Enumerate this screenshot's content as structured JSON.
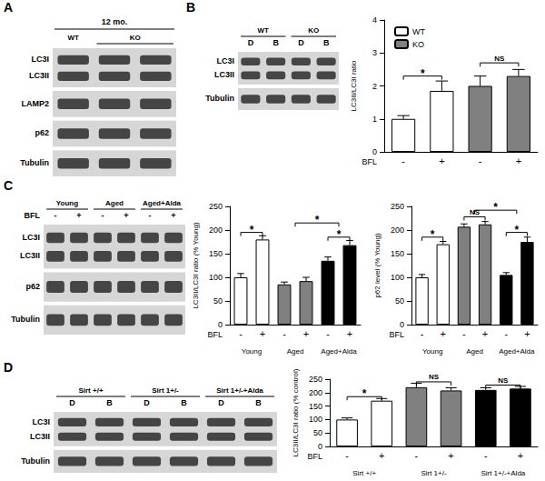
{
  "panel_letters": [
    "A",
    "B",
    "C",
    "D"
  ],
  "blots": [
    {
      "title": "12 mo.",
      "groups": [
        {
          "label": "WT",
          "lanes": 1
        },
        {
          "label": "KO",
          "lanes": 2
        }
      ],
      "rows": [
        [
          "LC3I",
          "LC3II"
        ],
        [
          "LAMP2"
        ],
        [
          "p62"
        ],
        [
          "Tubulin"
        ]
      ]
    },
    {
      "groups": [
        {
          "label": "WT",
          "lanes": 2,
          "lane_labels": [
            "D",
            "B"
          ]
        },
        {
          "label": "KO",
          "lanes": 2,
          "lane_labels": [
            "D",
            "B"
          ]
        }
      ],
      "rows": [
        [
          "LC3I",
          "LC3II"
        ],
        [
          "Tubulin"
        ]
      ]
    },
    {
      "groups": [
        {
          "label": "Young",
          "lanes": 2,
          "lane_labels": [
            "-",
            "+"
          ]
        },
        {
          "label": "Aged",
          "lanes": 2,
          "lane_labels": [
            "-",
            "+"
          ]
        },
        {
          "label": "Aged+Alda",
          "lanes": 2,
          "lane_labels": [
            "-",
            "+"
          ]
        }
      ],
      "lane_row_label": "BFL",
      "rows": [
        [
          "LC3I",
          "LC3II"
        ],
        [
          "p62"
        ],
        [
          "Tubulin"
        ]
      ]
    },
    {
      "groups": [
        {
          "label": "Sirt +/+",
          "lanes": 2,
          "lane_labels": [
            "D",
            "B"
          ]
        },
        {
          "label": "Sirt 1+/-",
          "lanes": 2,
          "lane_labels": [
            "D",
            "B"
          ]
        },
        {
          "label": "Sirt 1+/-+Alda",
          "lanes": 2,
          "lane_labels": [
            "D",
            "B"
          ]
        }
      ],
      "rows": [
        [
          "LC3I",
          "LC3II"
        ],
        [
          "Tubulin"
        ]
      ]
    }
  ],
  "chart_data": [
    {
      "type": "bar",
      "y_label": "LC3II/LC3I ratio",
      "x_label": "BFL",
      "categories": [
        "-",
        "+",
        "-",
        "+"
      ],
      "ylim": [
        0,
        4
      ],
      "yticks": [
        0,
        1,
        2,
        3,
        4
      ],
      "legend": "upper left",
      "series": [
        {
          "name": "WT",
          "color": "#ffffff",
          "values": [
            1.0,
            1.85,
            null,
            null
          ],
          "errors": [
            0.1,
            0.3,
            null,
            null
          ]
        },
        {
          "name": "KO",
          "color": "#808080",
          "values": [
            null,
            null,
            2.0,
            2.3
          ],
          "errors": [
            null,
            null,
            0.3,
            0.2
          ]
        }
      ],
      "annotations": [
        {
          "text": "*",
          "from": 0,
          "to": 1,
          "y": 2.3
        },
        {
          "text": "NS",
          "from": 2,
          "to": 3,
          "y": 2.7
        }
      ]
    },
    {
      "type": "bar",
      "y_label": "LC3II/LC3I ratio (% Young)",
      "x_label": "BFL",
      "categories": [
        "-",
        "+",
        "-",
        "+",
        "-",
        "+"
      ],
      "ylim": [
        0,
        250
      ],
      "yticks": [
        0,
        50,
        100,
        150,
        200,
        250
      ],
      "series": [
        {
          "name": "Young",
          "color": "#ffffff",
          "values": [
            100,
            180,
            null,
            null,
            null,
            null
          ],
          "errors": [
            8,
            8,
            null,
            null,
            null,
            null
          ]
        },
        {
          "name": "Aged",
          "color": "#808080",
          "values": [
            null,
            null,
            85,
            92,
            null,
            null
          ],
          "errors": [
            null,
            null,
            5,
            8,
            null,
            null
          ]
        },
        {
          "name": "Aged+Alda",
          "color": "#000000",
          "values": [
            null,
            null,
            null,
            null,
            135,
            168
          ],
          "errors": [
            null,
            null,
            null,
            null,
            8,
            10
          ]
        }
      ],
      "annotations": [
        {
          "text": "*",
          "from": 0,
          "to": 1,
          "y": 195
        },
        {
          "text": "*",
          "from": 4,
          "to": 5,
          "y": 185
        },
        {
          "text": "*",
          "from": 2.5,
          "to": 4.5,
          "y": 215
        }
      ]
    },
    {
      "type": "bar",
      "y_label": "p62 level (% Young)",
      "x_label": "BFL",
      "categories": [
        "-",
        "+",
        "-",
        "+",
        "-",
        "+"
      ],
      "ylim": [
        0,
        250
      ],
      "yticks": [
        0,
        50,
        100,
        150,
        200,
        250
      ],
      "series": [
        {
          "name": "Young",
          "color": "#ffffff",
          "values": [
            100,
            170,
            null,
            null,
            null,
            null
          ],
          "errors": [
            6,
            6,
            null,
            null,
            null,
            null
          ]
        },
        {
          "name": "Aged",
          "color": "#808080",
          "values": [
            null,
            null,
            207,
            212,
            null,
            null
          ],
          "errors": [
            null,
            null,
            6,
            6,
            null,
            null
          ]
        },
        {
          "name": "Aged+Alda",
          "color": "#000000",
          "values": [
            null,
            null,
            null,
            null,
            105,
            175
          ],
          "errors": [
            null,
            null,
            null,
            null,
            5,
            10
          ]
        }
      ],
      "annotations": [
        {
          "text": "*",
          "from": 0,
          "to": 1,
          "y": 185
        },
        {
          "text": "NS",
          "from": 2,
          "to": 3,
          "y": 228
        },
        {
          "text": "*",
          "from": 4,
          "to": 5,
          "y": 195
        },
        {
          "text": "*",
          "from": 2.5,
          "to": 4.5,
          "y": 242
        }
      ]
    },
    {
      "type": "bar",
      "y_label": "LC3II/LC3I ratio (% control)",
      "x_label": "BFL",
      "categories": [
        "-",
        "+",
        "-",
        "+",
        "-",
        "+"
      ],
      "ylim": [
        0,
        250
      ],
      "yticks": [
        0,
        50,
        100,
        150,
        200,
        250
      ],
      "series": [
        {
          "name": "Sirt +/+",
          "color": "#ffffff",
          "values": [
            100,
            170,
            null,
            null,
            null,
            null
          ],
          "errors": [
            6,
            8,
            null,
            null,
            null,
            null
          ]
        },
        {
          "name": "Sirt 1+/-",
          "color": "#808080",
          "values": [
            null,
            null,
            220,
            208,
            null,
            null
          ],
          "errors": [
            null,
            null,
            15,
            10,
            null,
            null
          ]
        },
        {
          "name": "Sirt 1+/-+Alda",
          "color": "#000000",
          "values": [
            null,
            null,
            null,
            null,
            210,
            215
          ],
          "errors": [
            null,
            null,
            null,
            null,
            8,
            8
          ]
        }
      ],
      "annotations": [
        {
          "text": "*",
          "from": 0,
          "to": 1,
          "y": 185
        },
        {
          "text": "NS",
          "from": 2,
          "to": 3,
          "y": 240
        },
        {
          "text": "NS",
          "from": 4,
          "to": 5,
          "y": 228
        }
      ]
    }
  ]
}
